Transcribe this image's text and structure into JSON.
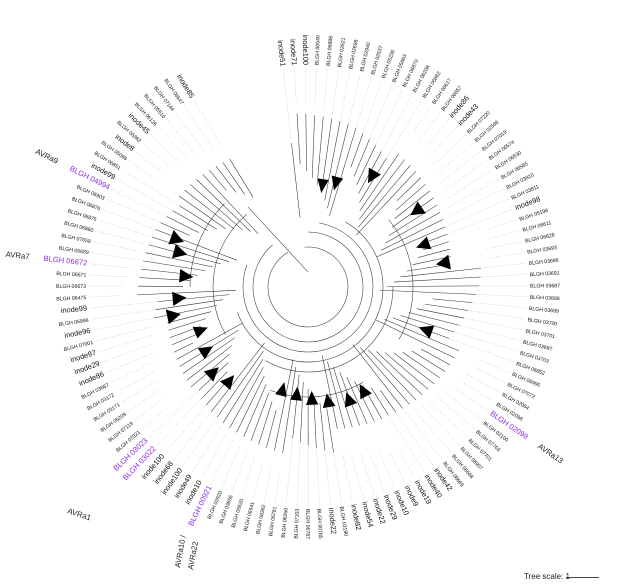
{
  "tree": {
    "leaves": [
      {
        "label": "inode51",
        "kind": "inode"
      },
      {
        "label": "inode71",
        "kind": "inode"
      },
      {
        "label": "inode100",
        "kind": "inode"
      },
      {
        "label": "BLGH 00540",
        "kind": "gene"
      },
      {
        "label": "BLGH 06888",
        "kind": "gene"
      },
      {
        "label": "BLGH 02621",
        "kind": "gene"
      },
      {
        "label": "BLGH 02698",
        "kind": "gene"
      },
      {
        "label": "BLGH 02940",
        "kind": "gene"
      },
      {
        "label": "BLGH 02537",
        "kind": "gene"
      },
      {
        "label": "BLGH 05236",
        "kind": "gene"
      },
      {
        "label": "BLGH 05863",
        "kind": "gene"
      },
      {
        "label": "BLGH 06870",
        "kind": "gene"
      },
      {
        "label": "BLGH 06208",
        "kind": "gene"
      },
      {
        "label": "BLGH 06882",
        "kind": "gene"
      },
      {
        "label": "BLGH 06617",
        "kind": "gene"
      },
      {
        "label": "BLGH 06857",
        "kind": "gene"
      },
      {
        "label": "inode86",
        "kind": "inode"
      },
      {
        "label": "inode43",
        "kind": "inode"
      },
      {
        "label": "BLGH 07220",
        "kind": "gene"
      },
      {
        "label": "BLGH 02566",
        "kind": "gene"
      },
      {
        "label": "BLGH 07019",
        "kind": "gene"
      },
      {
        "label": "BLGH 06574",
        "kind": "gene"
      },
      {
        "label": "BLGH 06530",
        "kind": "gene"
      },
      {
        "label": "BLGH 06565",
        "kind": "gene"
      },
      {
        "label": "BLGH 03810",
        "kind": "gene"
      },
      {
        "label": "BLGH 03811",
        "kind": "gene"
      },
      {
        "label": "inode98",
        "kind": "inode"
      },
      {
        "label": "BLGH 05198",
        "kind": "gene"
      },
      {
        "label": "BLGH 06611",
        "kind": "gene"
      },
      {
        "label": "BLGH 06828",
        "kind": "gene"
      },
      {
        "label": "BLGH 03693",
        "kind": "gene"
      },
      {
        "label": "BLGH 03696",
        "kind": "gene"
      },
      {
        "label": "BLGH 03691",
        "kind": "gene"
      },
      {
        "label": "BLGH 03687",
        "kind": "gene"
      },
      {
        "label": "BLGH 03688",
        "kind": "gene"
      },
      {
        "label": "BLGH 03699",
        "kind": "gene"
      },
      {
        "label": "BLGH 03700",
        "kind": "gene"
      },
      {
        "label": "BLGH 03701",
        "kind": "gene"
      },
      {
        "label": "BLGH 03687",
        "kind": "gene"
      },
      {
        "label": "BLGH 03703",
        "kind": "gene"
      },
      {
        "label": "BLGH 06852",
        "kind": "gene"
      },
      {
        "label": "BLGH 06995",
        "kind": "gene"
      },
      {
        "label": "BLGH 07072",
        "kind": "gene"
      },
      {
        "label": "BLGH 02064",
        "kind": "gene"
      },
      {
        "label": "BLGH 02098",
        "kind": "gene"
      },
      {
        "label": "BLGH 02099",
        "kind": "highlight",
        "avr": "AVRa13"
      },
      {
        "label": "BLGH 02100",
        "kind": "gene"
      },
      {
        "label": "BLGH 07703",
        "kind": "gene"
      },
      {
        "label": "BLGH 07701",
        "kind": "gene"
      },
      {
        "label": "BLGH 06907",
        "kind": "gene"
      },
      {
        "label": "BLGH 06668",
        "kind": "gene"
      },
      {
        "label": "BLGH 06669",
        "kind": "gene"
      },
      {
        "label": "inode42",
        "kind": "inode"
      },
      {
        "label": "inode40",
        "kind": "inode"
      },
      {
        "label": "inode19",
        "kind": "inode"
      },
      {
        "label": "inode9",
        "kind": "inode"
      },
      {
        "label": "inode10",
        "kind": "inode"
      },
      {
        "label": "inode29",
        "kind": "inode"
      },
      {
        "label": "inode22",
        "kind": "inode"
      },
      {
        "label": "inode54",
        "kind": "inode"
      },
      {
        "label": "inode82",
        "kind": "inode"
      },
      {
        "label": "BLGH 03190",
        "kind": "gene"
      },
      {
        "label": "inode22",
        "kind": "inode"
      },
      {
        "label": "BLGH 00785",
        "kind": "gene"
      },
      {
        "label": "BLGH 06787",
        "kind": "gene"
      },
      {
        "label": "BLGH 07103",
        "kind": "gene"
      },
      {
        "label": "BLGH 06260",
        "kind": "gene"
      },
      {
        "label": "BLGH 06781",
        "kind": "gene"
      },
      {
        "label": "BLGH 06362",
        "kind": "gene"
      },
      {
        "label": "BLGH 06541",
        "kind": "gene"
      },
      {
        "label": "BLGH 05520",
        "kind": "gene"
      },
      {
        "label": "BLGH 03856",
        "kind": "gene"
      },
      {
        "label": "BLGH 02920",
        "kind": "gene"
      },
      {
        "label": "BLGH 00921",
        "kind": "highlight"
      },
      {
        "label": "inode10",
        "kind": "inode"
      },
      {
        "label": "inode49",
        "kind": "inode"
      },
      {
        "label": "inode100",
        "kind": "inode"
      },
      {
        "label": "inode68",
        "kind": "inode"
      },
      {
        "label": "inode100",
        "kind": "inode"
      },
      {
        "label": "BLGH 03022",
        "kind": "highlight"
      },
      {
        "label": "BLGH 03023",
        "kind": "highlight"
      },
      {
        "label": "BLGH 07021",
        "kind": "gene"
      },
      {
        "label": "BLGH 07119",
        "kind": "gene"
      },
      {
        "label": "BLGH 05209",
        "kind": "gene"
      },
      {
        "label": "BLGH 03171",
        "kind": "gene"
      },
      {
        "label": "BLGH 03172",
        "kind": "gene"
      },
      {
        "label": "BLGH 03867",
        "kind": "gene"
      },
      {
        "label": "inode86",
        "kind": "inode"
      },
      {
        "label": "inode29",
        "kind": "inode"
      },
      {
        "label": "inode97",
        "kind": "inode"
      },
      {
        "label": "BLGH 07001",
        "kind": "gene"
      },
      {
        "label": "inode96",
        "kind": "inode"
      },
      {
        "label": "BLGH 06996",
        "kind": "gene"
      },
      {
        "label": "inode99",
        "kind": "inode"
      },
      {
        "label": "BLGH 06475",
        "kind": "gene"
      },
      {
        "label": "BLGH 06673",
        "kind": "gene"
      },
      {
        "label": "BLGH 06571",
        "kind": "gene"
      },
      {
        "label": "BLGH 06672",
        "kind": "highlight",
        "avr": "AVRa7"
      },
      {
        "label": "BLGH 06689",
        "kind": "gene"
      },
      {
        "label": "BLGH 07059",
        "kind": "gene"
      },
      {
        "label": "BLGH 06880",
        "kind": "gene"
      },
      {
        "label": "BLGH 06875",
        "kind": "gene"
      },
      {
        "label": "BLGH 06876",
        "kind": "gene"
      },
      {
        "label": "BLGH 06903",
        "kind": "gene"
      },
      {
        "label": "BLGH 04994",
        "kind": "highlight",
        "avr": "AVRa9"
      },
      {
        "label": "inode99",
        "kind": "inode"
      },
      {
        "label": "BLGH 06851",
        "kind": "gene"
      },
      {
        "label": "BLGH 05098",
        "kind": "gene"
      },
      {
        "label": "inode8",
        "kind": "inode"
      },
      {
        "label": "BLGH 06362",
        "kind": "gene"
      },
      {
        "label": "inode45",
        "kind": "inode"
      },
      {
        "label": "BLGH 06126",
        "kind": "gene"
      },
      {
        "label": "BLGH 05510",
        "kind": "gene"
      },
      {
        "label": "BLGH 07144",
        "kind": "gene"
      },
      {
        "label": "BLGH 06647",
        "kind": "gene"
      },
      {
        "label": "inode85",
        "kind": "inode"
      }
    ],
    "avr_labels": {
      "a1": "AVRa1",
      "a10": "AVRa10 /",
      "a22": "AVRa22"
    }
  },
  "colors": {
    "highlight": "#8a2be2",
    "branch": "#333333",
    "clade": "#000000"
  },
  "scale": {
    "label": "Tree scale: 1"
  }
}
